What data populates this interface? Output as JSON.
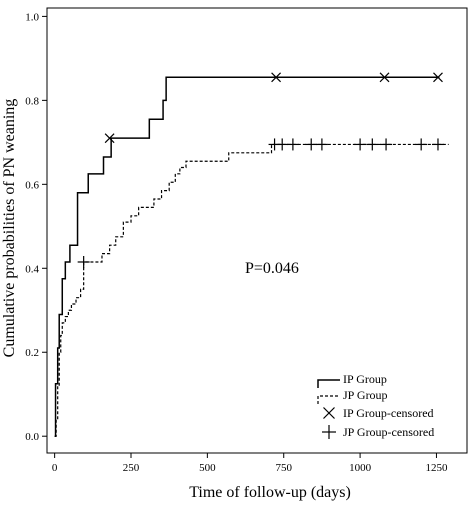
{
  "chart_data": {
    "type": "line",
    "xlabel": "Time of follow-up (days)",
    "ylabel": "Cumulative probabilities of PN weaning",
    "xlim": [
      -25,
      1350
    ],
    "ylim": [
      -0.04,
      1.02
    ],
    "x_ticks": [
      0,
      250,
      500,
      750,
      1000,
      1250
    ],
    "y_ticks": [
      0.0,
      0.2,
      0.4,
      0.6,
      0.8,
      1.0
    ],
    "y_tick_labels": [
      "0.0",
      "0.2",
      "0.4",
      "0.6",
      "0.8",
      "1.0"
    ],
    "grid": false,
    "legend_position": "bottom-right",
    "annotation": "P=0.046",
    "series": [
      {
        "name": "IP Group",
        "style": "solid",
        "steps": [
          [
            0,
            0.0
          ],
          [
            3,
            0.125
          ],
          [
            10,
            0.21
          ],
          [
            15,
            0.29
          ],
          [
            25,
            0.375
          ],
          [
            35,
            0.415
          ],
          [
            50,
            0.455
          ],
          [
            75,
            0.58
          ],
          [
            110,
            0.625
          ],
          [
            160,
            0.665
          ],
          [
            185,
            0.71
          ],
          [
            310,
            0.755
          ],
          [
            355,
            0.8
          ],
          [
            365,
            0.855
          ],
          [
            1260,
            0.855
          ]
        ],
        "censored": [
          [
            180,
            0.71
          ],
          [
            725,
            0.855
          ],
          [
            1080,
            0.855
          ],
          [
            1255,
            0.855
          ]
        ]
      },
      {
        "name": "JP Group",
        "style": "dashed",
        "steps": [
          [
            0,
            0.0
          ],
          [
            5,
            0.04
          ],
          [
            10,
            0.12
          ],
          [
            15,
            0.2
          ],
          [
            20,
            0.24
          ],
          [
            25,
            0.27
          ],
          [
            35,
            0.285
          ],
          [
            45,
            0.3
          ],
          [
            55,
            0.315
          ],
          [
            70,
            0.33
          ],
          [
            85,
            0.35
          ],
          [
            95,
            0.415
          ],
          [
            155,
            0.435
          ],
          [
            180,
            0.455
          ],
          [
            200,
            0.475
          ],
          [
            225,
            0.51
          ],
          [
            250,
            0.525
          ],
          [
            275,
            0.545
          ],
          [
            325,
            0.565
          ],
          [
            350,
            0.585
          ],
          [
            375,
            0.605
          ],
          [
            395,
            0.625
          ],
          [
            410,
            0.64
          ],
          [
            430,
            0.655
          ],
          [
            570,
            0.675
          ],
          [
            710,
            0.695
          ],
          [
            1290,
            0.695
          ]
        ],
        "censored": [
          [
            95,
            0.415
          ],
          [
            720,
            0.695
          ],
          [
            745,
            0.695
          ],
          [
            780,
            0.695
          ],
          [
            840,
            0.695
          ],
          [
            875,
            0.695
          ],
          [
            1000,
            0.695
          ],
          [
            1040,
            0.695
          ],
          [
            1085,
            0.695
          ],
          [
            1200,
            0.695
          ],
          [
            1255,
            0.695
          ]
        ]
      }
    ],
    "legend": [
      {
        "label": "IP Group",
        "kind": "solid-line"
      },
      {
        "label": "JP Group",
        "kind": "dashed-line"
      },
      {
        "label": "IP Group-censored",
        "kind": "x-marker"
      },
      {
        "label": "JP Group-censored",
        "kind": "plus-marker"
      }
    ]
  }
}
